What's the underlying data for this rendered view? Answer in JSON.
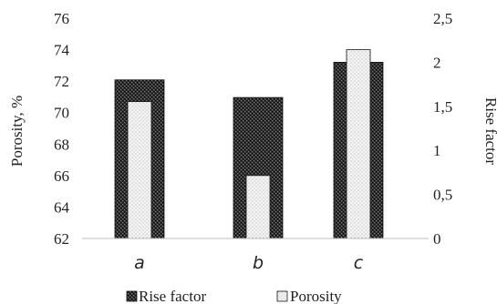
{
  "chart_data": {
    "type": "bar",
    "categories": [
      "a",
      "b",
      "c"
    ],
    "series": [
      {
        "name": "Rise factor",
        "axis": "right",
        "values": [
          1.8,
          1.6,
          2.0
        ],
        "pattern": "dense-dark"
      },
      {
        "name": "Porosity",
        "axis": "left",
        "values": [
          70.7,
          66.0,
          74.0
        ],
        "pattern": "light-dots"
      }
    ],
    "y_left": {
      "label": "Porosity, %",
      "ylim": [
        62,
        76
      ],
      "ticks": [
        "62",
        "64",
        "66",
        "68",
        "70",
        "72",
        "74",
        "76"
      ]
    },
    "y_right": {
      "label": "Rise factor",
      "ylim": [
        0,
        2.5
      ],
      "ticks": [
        "0",
        "0,5",
        "1",
        "1,5",
        "2",
        "2,5"
      ]
    },
    "grid": false,
    "legend": "bottom",
    "colors": {
      "rise_fill": "#2b2b2b",
      "rise_stroke": "#111111",
      "porosity_fill": "#f2f2f2",
      "porosity_stroke": "#1a1a1a",
      "axis": "#bfbfbf",
      "text": "#222222"
    }
  }
}
